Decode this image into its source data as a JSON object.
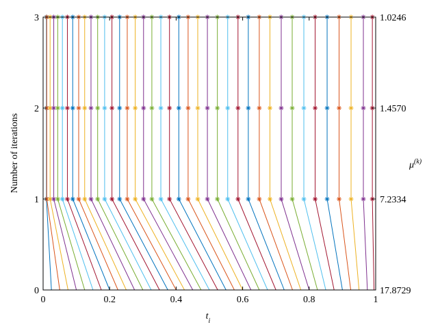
{
  "chart_data": {
    "type": "line",
    "xlabel": "t",
    "xlabel_sub": "i",
    "ylabel": "Number of iterations",
    "y2label": "μ",
    "y2label_sup": "(k)",
    "xlim": [
      0,
      1
    ],
    "ylim": [
      0,
      3
    ],
    "y2lim": [
      0,
      3
    ],
    "xticks": [
      0,
      0.2,
      0.4,
      0.6,
      0.8,
      1
    ],
    "yticks": [
      0,
      1,
      2,
      3
    ],
    "y2ticks": [
      {
        "value": 0,
        "label": "17.8729"
      },
      {
        "value": 1,
        "label": "7.2334"
      },
      {
        "value": 2,
        "label": "1.4570"
      },
      {
        "value": 3,
        "label": "1.0246"
      }
    ],
    "marker": "*",
    "series": [
      {
        "color": "#0072BD",
        "x": [
          0.025,
          0.01,
          0.01,
          0.01
        ],
        "values": [
          0,
          1,
          2,
          3
        ]
      },
      {
        "color": "#D95319",
        "x": [
          0.05,
          0.011,
          0.011,
          0.011
        ],
        "values": [
          0,
          1,
          2,
          3
        ]
      },
      {
        "color": "#EDB120",
        "x": [
          0.075,
          0.021,
          0.021,
          0.021
        ],
        "values": [
          0,
          1,
          2,
          3
        ]
      },
      {
        "color": "#7E2F8E",
        "x": [
          0.1,
          0.032,
          0.032,
          0.032
        ],
        "values": [
          0,
          1,
          2,
          3
        ]
      },
      {
        "color": "#77AC30",
        "x": [
          0.125,
          0.044,
          0.044,
          0.044
        ],
        "values": [
          0,
          1,
          2,
          3
        ]
      },
      {
        "color": "#4DBEEE",
        "x": [
          0.15,
          0.058,
          0.058,
          0.058
        ],
        "values": [
          0,
          1,
          2,
          3
        ]
      },
      {
        "color": "#A2142F",
        "x": [
          0.175,
          0.073,
          0.073,
          0.073
        ],
        "values": [
          0,
          1,
          2,
          3
        ]
      },
      {
        "color": "#0072BD",
        "x": [
          0.2,
          0.089,
          0.089,
          0.089
        ],
        "values": [
          0,
          1,
          2,
          3
        ]
      },
      {
        "color": "#D95319",
        "x": [
          0.225,
          0.107,
          0.107,
          0.107
        ],
        "values": [
          0,
          1,
          2,
          3
        ]
      },
      {
        "color": "#EDB120",
        "x": [
          0.25,
          0.125,
          0.125,
          0.125
        ],
        "values": [
          0,
          1,
          2,
          3
        ]
      },
      {
        "color": "#7E2F8E",
        "x": [
          0.275,
          0.144,
          0.144,
          0.144
        ],
        "values": [
          0,
          1,
          2,
          3
        ]
      },
      {
        "color": "#77AC30",
        "x": [
          0.3,
          0.164,
          0.164,
          0.164
        ],
        "values": [
          0,
          1,
          2,
          3
        ]
      },
      {
        "color": "#4DBEEE",
        "x": [
          0.325,
          0.185,
          0.185,
          0.185
        ],
        "values": [
          0,
          1,
          2,
          3
        ]
      },
      {
        "color": "#A2142F",
        "x": [
          0.35,
          0.207,
          0.207,
          0.207
        ],
        "values": [
          0,
          1,
          2,
          3
        ]
      },
      {
        "color": "#0072BD",
        "x": [
          0.375,
          0.23,
          0.23,
          0.23
        ],
        "values": [
          0,
          1,
          2,
          3
        ]
      },
      {
        "color": "#D95319",
        "x": [
          0.4,
          0.253,
          0.253,
          0.253
        ],
        "values": [
          0,
          1,
          2,
          3
        ]
      },
      {
        "color": "#EDB120",
        "x": [
          0.425,
          0.277,
          0.277,
          0.277
        ],
        "values": [
          0,
          1,
          2,
          3
        ]
      },
      {
        "color": "#7E2F8E",
        "x": [
          0.45,
          0.302,
          0.302,
          0.302
        ],
        "values": [
          0,
          1,
          2,
          3
        ]
      },
      {
        "color": "#77AC30",
        "x": [
          0.475,
          0.327,
          0.327,
          0.327
        ],
        "values": [
          0,
          1,
          2,
          3
        ]
      },
      {
        "color": "#4DBEEE",
        "x": [
          0.5,
          0.354,
          0.354,
          0.354
        ],
        "values": [
          0,
          1,
          2,
          3
        ]
      },
      {
        "color": "#A2142F",
        "x": [
          0.525,
          0.38,
          0.38,
          0.38
        ],
        "values": [
          0,
          1,
          2,
          3
        ]
      },
      {
        "color": "#0072BD",
        "x": [
          0.55,
          0.408,
          0.408,
          0.408
        ],
        "values": [
          0,
          1,
          2,
          3
        ]
      },
      {
        "color": "#D95319",
        "x": [
          0.575,
          0.436,
          0.436,
          0.436
        ],
        "values": [
          0,
          1,
          2,
          3
        ]
      },
      {
        "color": "#EDB120",
        "x": [
          0.6,
          0.465,
          0.465,
          0.465
        ],
        "values": [
          0,
          1,
          2,
          3
        ]
      },
      {
        "color": "#7E2F8E",
        "x": [
          0.625,
          0.494,
          0.494,
          0.494
        ],
        "values": [
          0,
          1,
          2,
          3
        ]
      },
      {
        "color": "#77AC30",
        "x": [
          0.65,
          0.524,
          0.524,
          0.524
        ],
        "values": [
          0,
          1,
          2,
          3
        ]
      },
      {
        "color": "#4DBEEE",
        "x": [
          0.675,
          0.555,
          0.555,
          0.555
        ],
        "values": [
          0,
          1,
          2,
          3
        ]
      },
      {
        "color": "#A2142F",
        "x": [
          0.7,
          0.586,
          0.586,
          0.586
        ],
        "values": [
          0,
          1,
          2,
          3
        ]
      },
      {
        "color": "#0072BD",
        "x": [
          0.725,
          0.617,
          0.617,
          0.617
        ],
        "values": [
          0,
          1,
          2,
          3
        ]
      },
      {
        "color": "#D95319",
        "x": [
          0.75,
          0.65,
          0.65,
          0.65
        ],
        "values": [
          0,
          1,
          2,
          3
        ]
      },
      {
        "color": "#EDB120",
        "x": [
          0.775,
          0.682,
          0.682,
          0.682
        ],
        "values": [
          0,
          1,
          2,
          3
        ]
      },
      {
        "color": "#7E2F8E",
        "x": [
          0.8,
          0.716,
          0.716,
          0.716
        ],
        "values": [
          0,
          1,
          2,
          3
        ]
      },
      {
        "color": "#77AC30",
        "x": [
          0.825,
          0.749,
          0.749,
          0.749
        ],
        "values": [
          0,
          1,
          2,
          3
        ]
      },
      {
        "color": "#4DBEEE",
        "x": [
          0.85,
          0.784,
          0.784,
          0.784
        ],
        "values": [
          0,
          1,
          2,
          3
        ]
      },
      {
        "color": "#A2142F",
        "x": [
          0.875,
          0.818,
          0.818,
          0.818
        ],
        "values": [
          0,
          1,
          2,
          3
        ]
      },
      {
        "color": "#0072BD",
        "x": [
          0.9,
          0.854,
          0.854,
          0.854
        ],
        "values": [
          0,
          1,
          2,
          3
        ]
      },
      {
        "color": "#D95319",
        "x": [
          0.925,
          0.89,
          0.89,
          0.89
        ],
        "values": [
          0,
          1,
          2,
          3
        ]
      },
      {
        "color": "#EDB120",
        "x": [
          0.95,
          0.926,
          0.926,
          0.926
        ],
        "values": [
          0,
          1,
          2,
          3
        ]
      },
      {
        "color": "#7E2F8E",
        "x": [
          0.975,
          0.963,
          0.963,
          0.963
        ],
        "values": [
          0,
          1,
          2,
          3
        ]
      },
      {
        "color": "#A2142F",
        "x": [
          0.995,
          0.99,
          0.99,
          0.99
        ],
        "values": [
          0,
          1,
          2,
          3
        ]
      }
    ]
  }
}
